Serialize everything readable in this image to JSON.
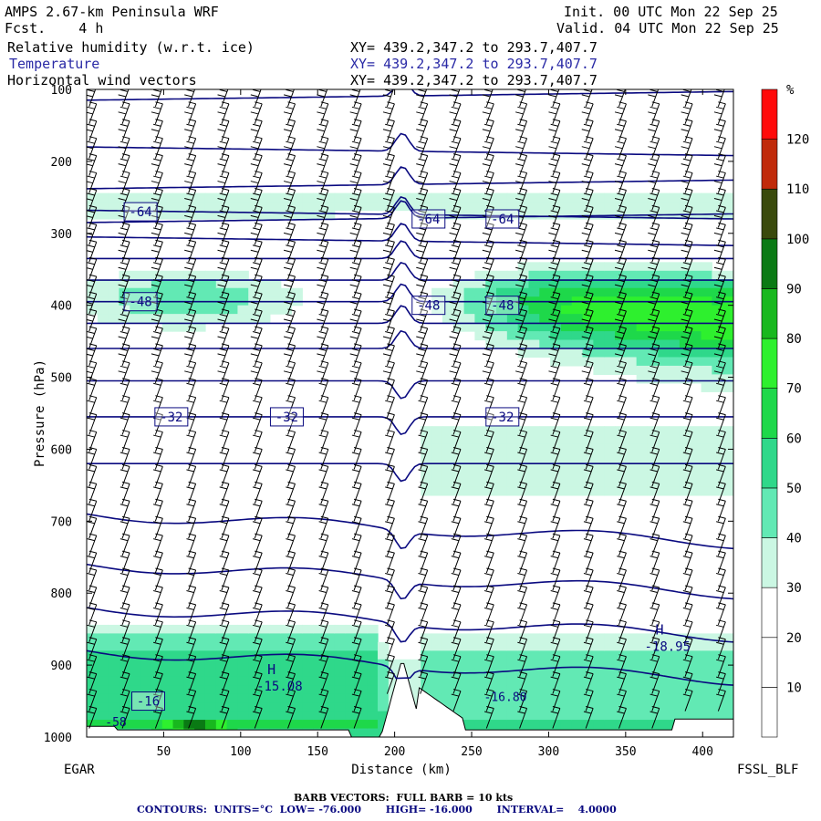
{
  "header": {
    "model": "AMPS 2.67-km Peninsula WRF",
    "fcst": "Fcst.    4 h",
    "init": "Init. 00 UTC Mon 22 Sep 25",
    "valid": "Valid. 04 UTC Mon 22 Sep 25",
    "fields": [
      {
        "name": "Relative humidity (w.r.t. ice)",
        "xy": "XY= 439.2,347.2 to 293.7,407.7"
      },
      {
        "name": "Temperature",
        "xy": "XY= 439.2,347.2 to 293.7,407.7"
      },
      {
        "name": "Horizontal wind vectors",
        "xy": "XY= 439.2,347.2 to 293.7,407.7"
      }
    ]
  },
  "footer": {
    "left_station": "EGAR",
    "right_station": "FSSL_BLF",
    "barb_note": "BARB VECTORS:  FULL BARB = 10 kts",
    "contour_note": "CONTOURS:  UNITS=°C  LOW= -76.000       HIGH= -16.000       INTERVAL=    4.0000"
  },
  "colors": {
    "contour": "#0a0a80",
    "barb": "#000000"
  },
  "chart_data": {
    "type": "heatmap",
    "title": "Relative humidity (w.r.t. ice) cross-section",
    "xlabel": "Distance (km)",
    "ylabel": "Pressure (hPa)",
    "xlim": [
      0,
      420
    ],
    "ylim": [
      1000,
      100
    ],
    "x_ticks": [
      50,
      100,
      150,
      200,
      250,
      300,
      350,
      400
    ],
    "y_ticks": [
      100,
      200,
      300,
      400,
      500,
      600,
      700,
      800,
      900,
      1000
    ],
    "colorbar": {
      "unit": "%",
      "levels": [
        10,
        20,
        30,
        40,
        50,
        60,
        70,
        80,
        90,
        100,
        110,
        120
      ],
      "colors": [
        "#ffffff",
        "#ffffff",
        "#ffffff",
        "#cbf7e3",
        "#62e9b4",
        "#2fd88a",
        "#1ed84a",
        "#2ef02e",
        "#18b81e",
        "#0a7a14",
        "#3a4a0c",
        "#c02a0a",
        "#ff0a0a"
      ]
    },
    "temperature_labels": [
      {
        "text": "-64",
        "x": 35,
        "p": 270
      },
      {
        "text": "-64",
        "x": 222,
        "p": 280
      },
      {
        "text": "-64",
        "x": 270,
        "p": 280
      },
      {
        "text": "-48",
        "x": 35,
        "p": 395
      },
      {
        "text": "-48",
        "x": 222,
        "p": 400
      },
      {
        "text": "-48",
        "x": 270,
        "p": 400
      },
      {
        "text": "-32",
        "x": 55,
        "p": 555
      },
      {
        "text": "-32",
        "x": 130,
        "p": 555
      },
      {
        "text": "-32",
        "x": 270,
        "p": 555
      },
      {
        "text": "-16",
        "x": 40,
        "p": 950
      }
    ],
    "extrema": [
      {
        "kind": "H",
        "value": "-15.08",
        "x": 128,
        "p": 915
      },
      {
        "kind": "H",
        "value": "-18.95",
        "x": 380,
        "p": 860
      }
    ],
    "edge_labels": [
      {
        "text": "-16.80",
        "x": 258,
        "p": 950
      },
      {
        "text": "-58",
        "x": 12,
        "p": 985
      }
    ]
  }
}
